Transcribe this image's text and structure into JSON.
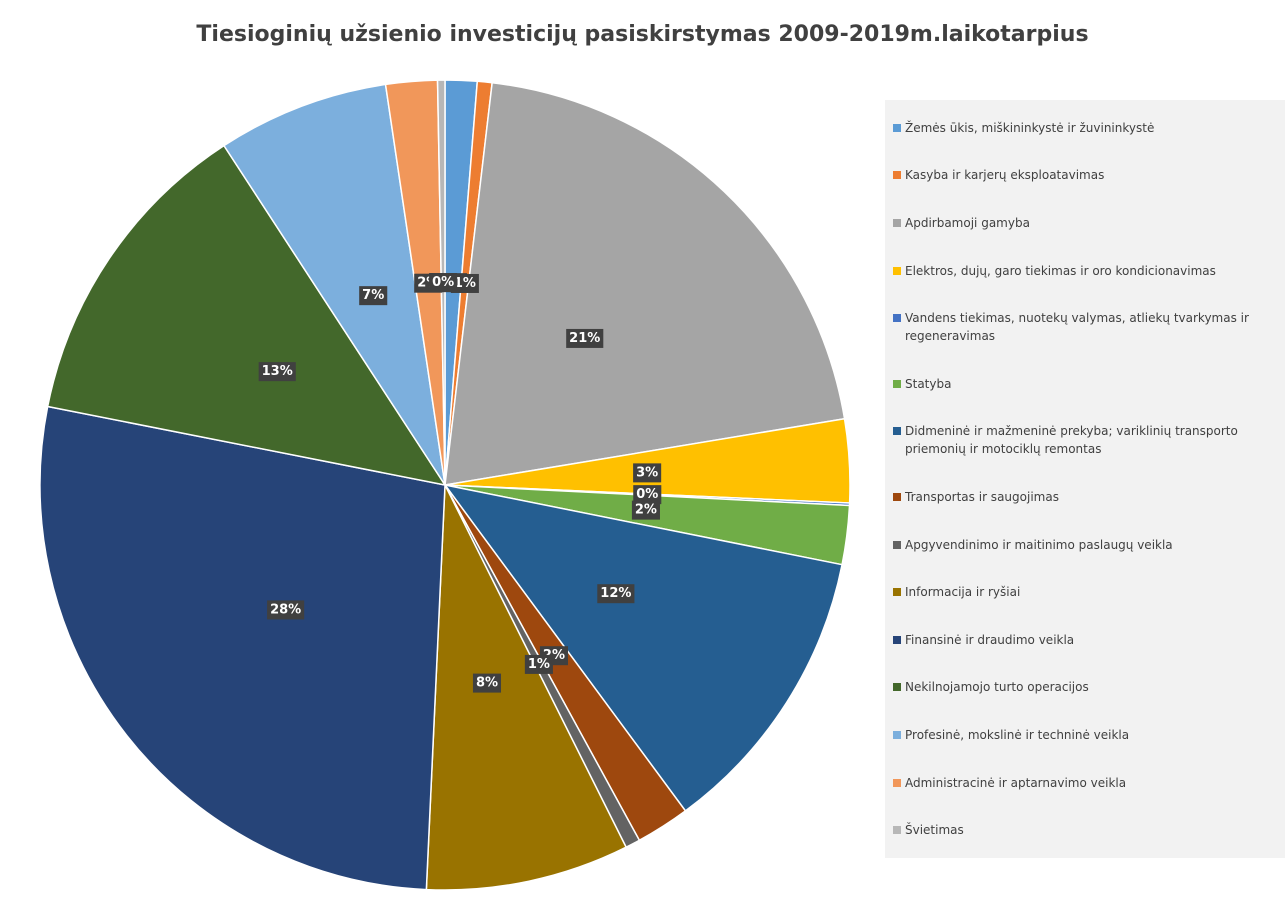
{
  "chart_data": {
    "type": "pie",
    "title": "Tiesioginių užsienio investicijų pasiskirstymas 2009-2019m.laikotarpius",
    "categories": [
      "Žemės ūkis, miškininkystė ir žuvininkystė",
      "Kasyba ir karjerų eksploatavimas",
      "Apdirbamoji gamyba",
      "Elektros, dujų, garo tiekimas ir oro kondicionavimas",
      "Vandens tiekimas, nuotekų valymas, atliekų tvarkymas ir regeneravimas",
      "Statyba",
      "Didmeninė ir mažmeninė prekyba; variklinių transporto priemonių ir motociklų remontas",
      "Transportas ir saugojimas",
      "Apgyvendinimo ir maitinimo paslaugų veikla",
      "Informacija ir ryšiai",
      "Finansinė ir draudimo veikla",
      "Nekilnojamojo turto operacijos",
      "Profesinė, mokslinė ir techninė veikla",
      "Administracinė ir aptarnavimo veikla",
      "Švietimas"
    ],
    "values": [
      1.3,
      0.6,
      21,
      3.4,
      0.1,
      2.4,
      12,
      2.2,
      0.6,
      8.3,
      28,
      13,
      7,
      2.1,
      0.3
    ],
    "value_labels": [
      "1%",
      "1%",
      "21%",
      "3%",
      "0%",
      "2%",
      "12%",
      "2%",
      "1%",
      "8%",
      "28%",
      "13%",
      "7%",
      "2%",
      "0%"
    ],
    "colors": [
      "#5b9bd5",
      "#ed7d31",
      "#a5a5a5",
      "#ffc000",
      "#4472c4",
      "#70ad47",
      "#255e91",
      "#9e480e",
      "#636363",
      "#997300",
      "#264478",
      "#43682b",
      "#7cafdd",
      "#f1975a",
      "#b7b7b7"
    ],
    "legend": "right"
  }
}
